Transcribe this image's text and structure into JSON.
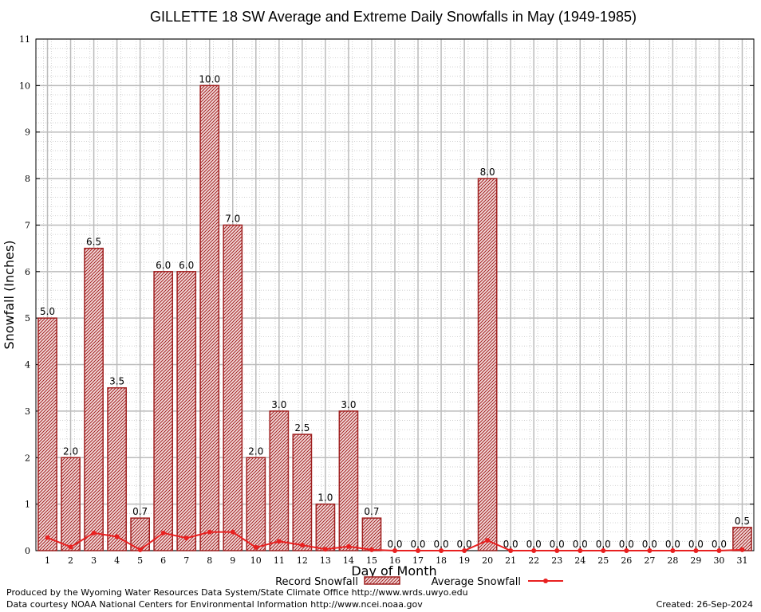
{
  "chart_data": {
    "type": "bar",
    "title": "GILLETTE 18 SW Average and Extreme Daily Snowfalls in May (1949-1985)",
    "xlabel": "Day of Month",
    "ylabel": "Snowfall (Inches)",
    "ylim": [
      0,
      11
    ],
    "yticks": [
      "0",
      "1",
      "2",
      "3",
      "4",
      "5",
      "6",
      "7",
      "8",
      "9",
      "10",
      "11"
    ],
    "categories": [
      "1",
      "2",
      "3",
      "4",
      "5",
      "6",
      "7",
      "8",
      "9",
      "10",
      "11",
      "12",
      "13",
      "14",
      "15",
      "16",
      "17",
      "18",
      "19",
      "20",
      "21",
      "22",
      "23",
      "24",
      "25",
      "26",
      "27",
      "28",
      "29",
      "30",
      "31"
    ],
    "series": [
      {
        "name": "Record Snowfall",
        "type": "bar",
        "color": "#a02020",
        "values": [
          5.0,
          2.0,
          6.5,
          3.5,
          0.7,
          6.0,
          6.0,
          10.0,
          7.0,
          2.0,
          3.0,
          2.5,
          1.0,
          3.0,
          0.7,
          0.0,
          0.0,
          0.0,
          0.0,
          8.0,
          0.0,
          0.0,
          0.0,
          0.0,
          0.0,
          0.0,
          0.0,
          0.0,
          0.0,
          0.0,
          0.5
        ],
        "labels": [
          "5.0",
          "2.0",
          "6.5",
          "3.5",
          "0.7",
          "6.0",
          "6.0",
          "10.0",
          "7.0",
          "2.0",
          "3.0",
          "2.5",
          "1.0",
          "3.0",
          "0.7",
          "0.0",
          "0.0",
          "0.0",
          "0.0",
          "8.0",
          "0.0",
          "0.0",
          "0.0",
          "0.0",
          "0.0",
          "0.0",
          "0.0",
          "0.0",
          "0.0",
          "0.0",
          "0.5"
        ]
      },
      {
        "name": "Average Snowfall",
        "type": "line",
        "color": "#e82020",
        "values": [
          0.28,
          0.08,
          0.38,
          0.3,
          0.02,
          0.38,
          0.27,
          0.4,
          0.4,
          0.07,
          0.2,
          0.12,
          0.03,
          0.09,
          0.02,
          0.0,
          0.0,
          0.0,
          0.0,
          0.22,
          0.0,
          0.0,
          0.0,
          0.0,
          0.0,
          0.0,
          0.0,
          0.0,
          0.0,
          0.0,
          0.02
        ]
      }
    ],
    "grid": true,
    "legend": "bottom"
  },
  "footer": {
    "produced_by": "Produced by the Wyoming Water Resources Data System/State Climate Office http://www.wrds.uwyo.edu",
    "data_courtesy": "Data courtesy NOAA National Centers for Environmental Information http://www.ncei.noaa.gov",
    "created": "Created:  26-Sep-2024"
  }
}
